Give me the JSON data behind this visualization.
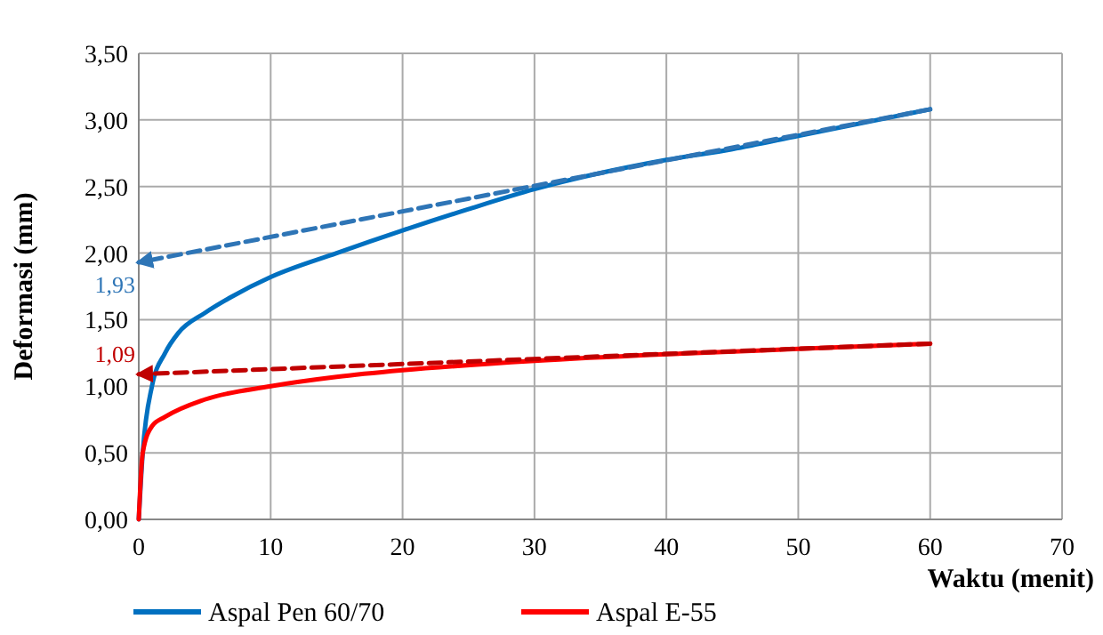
{
  "chart_data": {
    "type": "line",
    "xlabel": "Waktu (menit)",
    "ylabel": "Deformasi (mm)",
    "xlim": [
      0,
      70
    ],
    "xticks": [
      0,
      10,
      20,
      30,
      40,
      50,
      60,
      70
    ],
    "ylim": [
      0,
      3.5
    ],
    "yticks": [
      {
        "value": 0,
        "label": "0,00"
      },
      {
        "value": 0.5,
        "label": "0,50"
      },
      {
        "value": 1,
        "label": "1,00"
      },
      {
        "value": 1.5,
        "label": "1,50"
      },
      {
        "value": 2,
        "label": "2,00"
      },
      {
        "value": 2.5,
        "label": "2,50"
      },
      {
        "value": 3,
        "label": "3,00"
      },
      {
        "value": 3.5,
        "label": "3,50"
      }
    ],
    "grid": true,
    "legend": "bottom",
    "line_style": "solid",
    "series": [
      {
        "name": "Aspal Pen 60/70",
        "color": "#0070c0",
        "x": [
          0,
          0.3,
          1,
          2,
          3,
          5,
          7,
          10,
          15,
          20,
          25,
          30,
          40,
          45,
          50,
          60
        ],
        "values": [
          0,
          0.5,
          1.0,
          1.25,
          1.4,
          1.55,
          1.67,
          1.82,
          2.0,
          2.17,
          2.33,
          2.48,
          2.7,
          2.78,
          2.88,
          3.08
        ]
      },
      {
        "name": "Aspal E-55",
        "color": "#ff0000",
        "x": [
          0,
          0.3,
          1,
          2,
          5,
          10,
          15,
          20,
          30,
          40,
          50,
          60
        ],
        "values": [
          0,
          0.5,
          0.7,
          0.77,
          0.9,
          1.0,
          1.07,
          1.12,
          1.19,
          1.24,
          1.28,
          1.32
        ]
      },
      {
        "color": "#2e75b6",
        "line_style": "dashed",
        "x": [
          60,
          0
        ],
        "values": [
          3.08,
          1.93
        ]
      },
      {
        "color": "#c00000",
        "line_style": "dashed",
        "x": [
          60,
          0
        ],
        "values": [
          1.32,
          1.09
        ]
      }
    ],
    "annotations": [
      {
        "text": "1,93",
        "x": 0,
        "y": 1.93
      },
      {
        "text": "1,09",
        "x": 0,
        "y": 1.09
      }
    ]
  }
}
